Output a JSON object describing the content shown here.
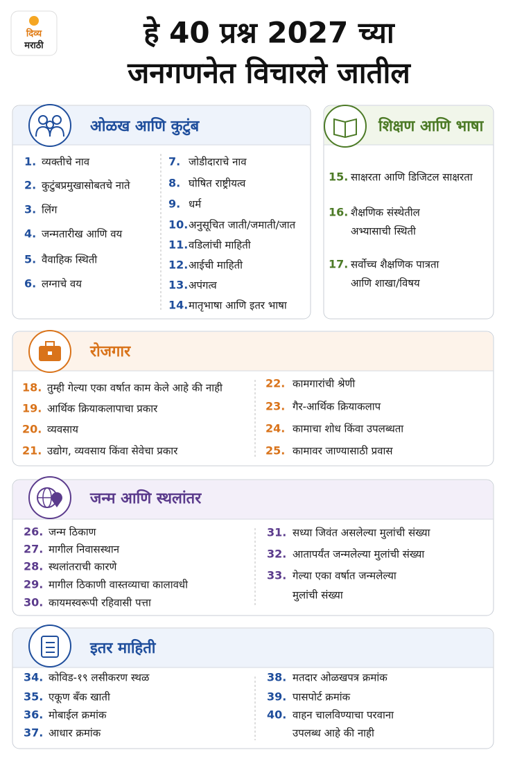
{
  "header": {
    "logo": {
      "line1": "दिव्य",
      "line2": "मराठी"
    },
    "title": {
      "line1": "हे 40 प्रश्न 2027 च्या",
      "line2": "जनगणनेत विचारले जातील"
    }
  },
  "sections": [
    {
      "title": "ओळख आणि कुटुंब",
      "items": [
        {
          "number": "1.",
          "lines": [
            "व्यक्तीचे नाव"
          ]
        },
        {
          "number": "2.",
          "lines": [
            "कुटुंबप्रमुखासोबतचे नाते"
          ]
        },
        {
          "number": "3.",
          "lines": [
            "लिंग"
          ]
        },
        {
          "number": "4.",
          "lines": [
            "जन्मतारीख आणि वय"
          ]
        },
        {
          "number": "5.",
          "lines": [
            "वैवाहिक स्थिती"
          ]
        },
        {
          "number": "6.",
          "lines": [
            "लग्नाचे वय"
          ]
        },
        {
          "number": "7.",
          "lines": [
            "जोडीदाराचे नाव"
          ]
        },
        {
          "number": "8.",
          "lines": [
            "घोषित राष्ट्रीयत्व"
          ]
        },
        {
          "number": "9.",
          "lines": [
            "धर्म"
          ]
        },
        {
          "number": "10.",
          "lines": [
            "अनुसूचित जाती/जमाती/जात"
          ]
        },
        {
          "number": "11.",
          "lines": [
            "वडिलांची माहिती"
          ]
        },
        {
          "number": "12.",
          "lines": [
            "आईची माहिती"
          ]
        },
        {
          "number": "13.",
          "lines": [
            "अपंगत्व"
          ]
        },
        {
          "number": "14.",
          "lines": [
            "मातृभाषा आणि इतर भाषा"
          ]
        }
      ]
    },
    {
      "title": "शिक्षण आणि भाषा",
      "items": [
        {
          "number": "15.",
          "lines": [
            "साक्षरता आणि डिजिटल साक्षरता"
          ]
        },
        {
          "number": "16.",
          "lines": [
            "शैक्षणिक संस्थेतील",
            "अभ्यासाची स्थिती"
          ]
        },
        {
          "number": "17.",
          "lines": [
            "सर्वोच्च शैक्षणिक पात्रता",
            "आणि शाखा/विषय"
          ]
        }
      ]
    },
    {
      "title": "रोजगार",
      "items": [
        {
          "number": "18.",
          "lines": [
            "तुम्ही गेल्या एका वर्षात काम केले आहे की नाही"
          ]
        },
        {
          "number": "19.",
          "lines": [
            "आर्थिक क्रियाकलापाचा प्रकार"
          ]
        },
        {
          "number": "20.",
          "lines": [
            "व्यवसाय"
          ]
        },
        {
          "number": "21.",
          "lines": [
            "उद्योग, व्यवसाय किंवा सेवेचा प्रकार"
          ]
        },
        {
          "number": "22.",
          "lines": [
            "कामगारांची श्रेणी"
          ]
        },
        {
          "number": "23.",
          "lines": [
            "गैर-आर्थिक क्रियाकलाप"
          ]
        },
        {
          "number": "24.",
          "lines": [
            "कामाचा शोध किंवा उपलब्धता"
          ]
        },
        {
          "number": "25.",
          "lines": [
            "कामावर जाण्यासाठी प्रवास"
          ]
        }
      ]
    },
    {
      "title": "जन्म आणि स्थलांतर",
      "items": [
        {
          "number": "26.",
          "lines": [
            "जन्म ठिकाण"
          ]
        },
        {
          "number": "27.",
          "lines": [
            "मागील निवासस्थान"
          ]
        },
        {
          "number": "28.",
          "lines": [
            "स्थलांतराची कारणे"
          ]
        },
        {
          "number": "29.",
          "lines": [
            "मागील ठिकाणी वास्तव्याचा कालावधी"
          ]
        },
        {
          "number": "30.",
          "lines": [
            "कायमस्वरूपी रहिवासी पत्ता"
          ]
        },
        {
          "number": "31.",
          "lines": [
            "सध्या जिवंत असलेल्या मुलांची संख्या"
          ]
        },
        {
          "number": "32.",
          "lines": [
            "आतापर्यंत जन्मलेल्या मुलांची संख्या"
          ]
        },
        {
          "number": "33.",
          "lines": [
            "गेल्या एका वर्षात जन्मलेल्या",
            "मुलांची संख्या"
          ]
        }
      ]
    },
    {
      "title": "इतर माहिती",
      "items": [
        {
          "number": "34.",
          "lines": [
            "कोविड-१९ लसीकरण स्थळ"
          ]
        },
        {
          "number": "35.",
          "lines": [
            "एकूण बँक खाती"
          ]
        },
        {
          "number": "36.",
          "lines": [
            "मोबाईल क्रमांक"
          ]
        },
        {
          "number": "37.",
          "lines": [
            "आधार क्रमांक"
          ]
        },
        {
          "number": "38.",
          "lines": [
            "मतदार ओळखपत्र क्रमांक"
          ]
        },
        {
          "number": "39.",
          "lines": [
            "पासपोर्ट क्रमांक"
          ]
        },
        {
          "number": "40.",
          "lines": [
            "वाहन चालविण्याचा परवाना",
            "उपलब्ध आहे की नाही"
          ]
        }
      ]
    }
  ]
}
